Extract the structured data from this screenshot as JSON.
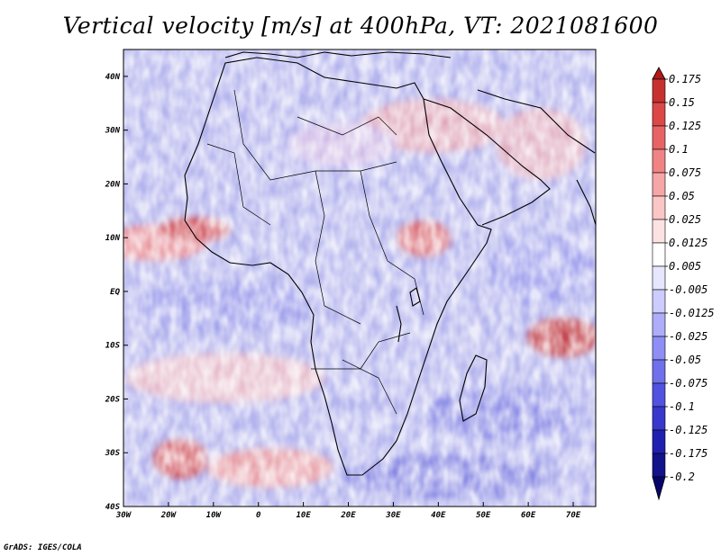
{
  "title": "Vertical velocity [m/s] at 400hPa, VT: 2021081600",
  "credit": "GrADS: IGES/COLA",
  "axes": {
    "lon_labels": [
      "30W",
      "20W",
      "10W",
      "0",
      "10E",
      "20E",
      "30E",
      "40E",
      "50E",
      "60E",
      "70E"
    ],
    "lat_labels": [
      "40N",
      "30N",
      "20N",
      "10N",
      "EQ",
      "10S",
      "20S",
      "30S",
      "40S"
    ]
  },
  "colorbar": {
    "labels": [
      "0.175",
      "0.15",
      "0.125",
      "0.1",
      "0.075",
      "0.05",
      "0.025",
      "0.0125",
      "0.005",
      "-0.005",
      "-0.0125",
      "-0.025",
      "-0.05",
      "-0.075",
      "-0.1",
      "-0.125",
      "-0.175",
      "-0.2"
    ],
    "colors": [
      "#b01a1a",
      "#c83030",
      "#dc4848",
      "#e86464",
      "#f08484",
      "#f6a6a6",
      "#fac6c6",
      "#fde2e2",
      "#ffffff",
      "#e6e6ff",
      "#ccccff",
      "#adadfa",
      "#8e8ef4",
      "#7070ec",
      "#5252e0",
      "#3838cc",
      "#2020b0",
      "#12128a",
      "#06066a"
    ]
  },
  "colors": {
    "frame": "#000000",
    "background_field": "#b8b8f2",
    "coast": "#000000"
  }
}
